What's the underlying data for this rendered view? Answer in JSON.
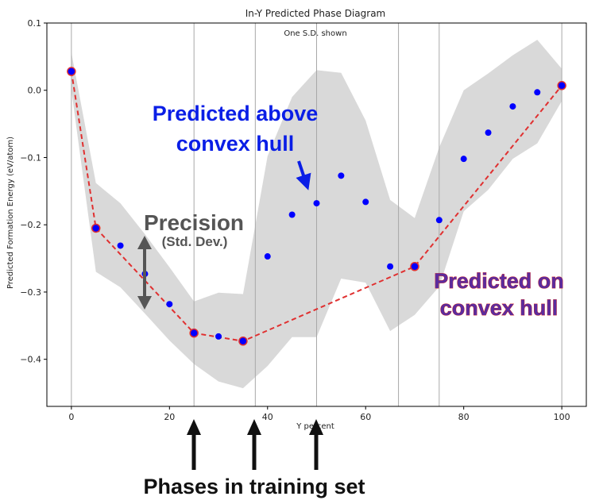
{
  "chart_data": {
    "type": "scatter",
    "title": "In-Y Predicted Phase Diagram",
    "subtitle": "One S.D. shown",
    "xlabel": "Y percent",
    "ylabel": "Predicted Formation Energy (eV/atom)",
    "xlim": [
      -5,
      105
    ],
    "ylim": [
      -0.47,
      0.1
    ],
    "xticks": [
      0,
      20,
      40,
      60,
      80,
      100
    ],
    "yticks": [
      0.1,
      0.0,
      -0.1,
      -0.2,
      -0.3,
      -0.4
    ],
    "ytick_labels": [
      "0.1",
      "0.0",
      "−0.1",
      "−0.2",
      "−0.3",
      "−0.4"
    ],
    "training_phases_x": [
      0,
      25,
      37.5,
      50,
      66.7,
      75,
      100
    ],
    "points": {
      "x": [
        0,
        5,
        10,
        15,
        20,
        25,
        30,
        35,
        40,
        45,
        50,
        55,
        60,
        65,
        70,
        75,
        80,
        85,
        90,
        95,
        100
      ],
      "y": [
        0.028,
        -0.205,
        -0.231,
        -0.273,
        -0.318,
        -0.361,
        -0.366,
        -0.373,
        -0.247,
        -0.185,
        -0.168,
        -0.127,
        -0.166,
        -0.262,
        -0.262,
        -0.193,
        -0.102,
        -0.063,
        -0.024,
        -0.003,
        0.007
      ]
    },
    "std_band": {
      "x": [
        0,
        5,
        10,
        15,
        20,
        25,
        30,
        35,
        40,
        45,
        50,
        55,
        60,
        65,
        70,
        75,
        80,
        85,
        90,
        95,
        100
      ],
      "upper": [
        0.056,
        -0.138,
        -0.168,
        -0.214,
        -0.263,
        -0.314,
        -0.301,
        -0.303,
        -0.098,
        -0.01,
        0.03,
        0.026,
        -0.045,
        -0.163,
        -0.19,
        -0.085,
        0.0,
        0.025,
        0.052,
        0.075,
        0.032
      ],
      "lower": [
        0.0,
        -0.27,
        -0.293,
        -0.332,
        -0.372,
        -0.407,
        -0.433,
        -0.443,
        -0.41,
        -0.367,
        -0.367,
        -0.28,
        -0.286,
        -0.358,
        -0.334,
        -0.292,
        -0.18,
        -0.148,
        -0.102,
        -0.079,
        -0.016
      ]
    },
    "convex_hull": {
      "x": [
        0,
        5,
        25,
        35,
        70,
        100
      ],
      "y": [
        0.028,
        -0.205,
        -0.361,
        -0.373,
        -0.262,
        0.007
      ]
    },
    "colors": {
      "points": "#0000ff",
      "hull_line": "#e03030",
      "band": "#d9d9d9",
      "vlines": "#a8a8a8"
    },
    "grid": false
  },
  "annotations": {
    "above_hull": [
      "Predicted above",
      "convex hull"
    ],
    "precision": "Precision",
    "precision_sub": "(Std. Dev.)",
    "on_hull": [
      "Predicted on",
      "convex hull"
    ],
    "training": "Phases in training set"
  }
}
